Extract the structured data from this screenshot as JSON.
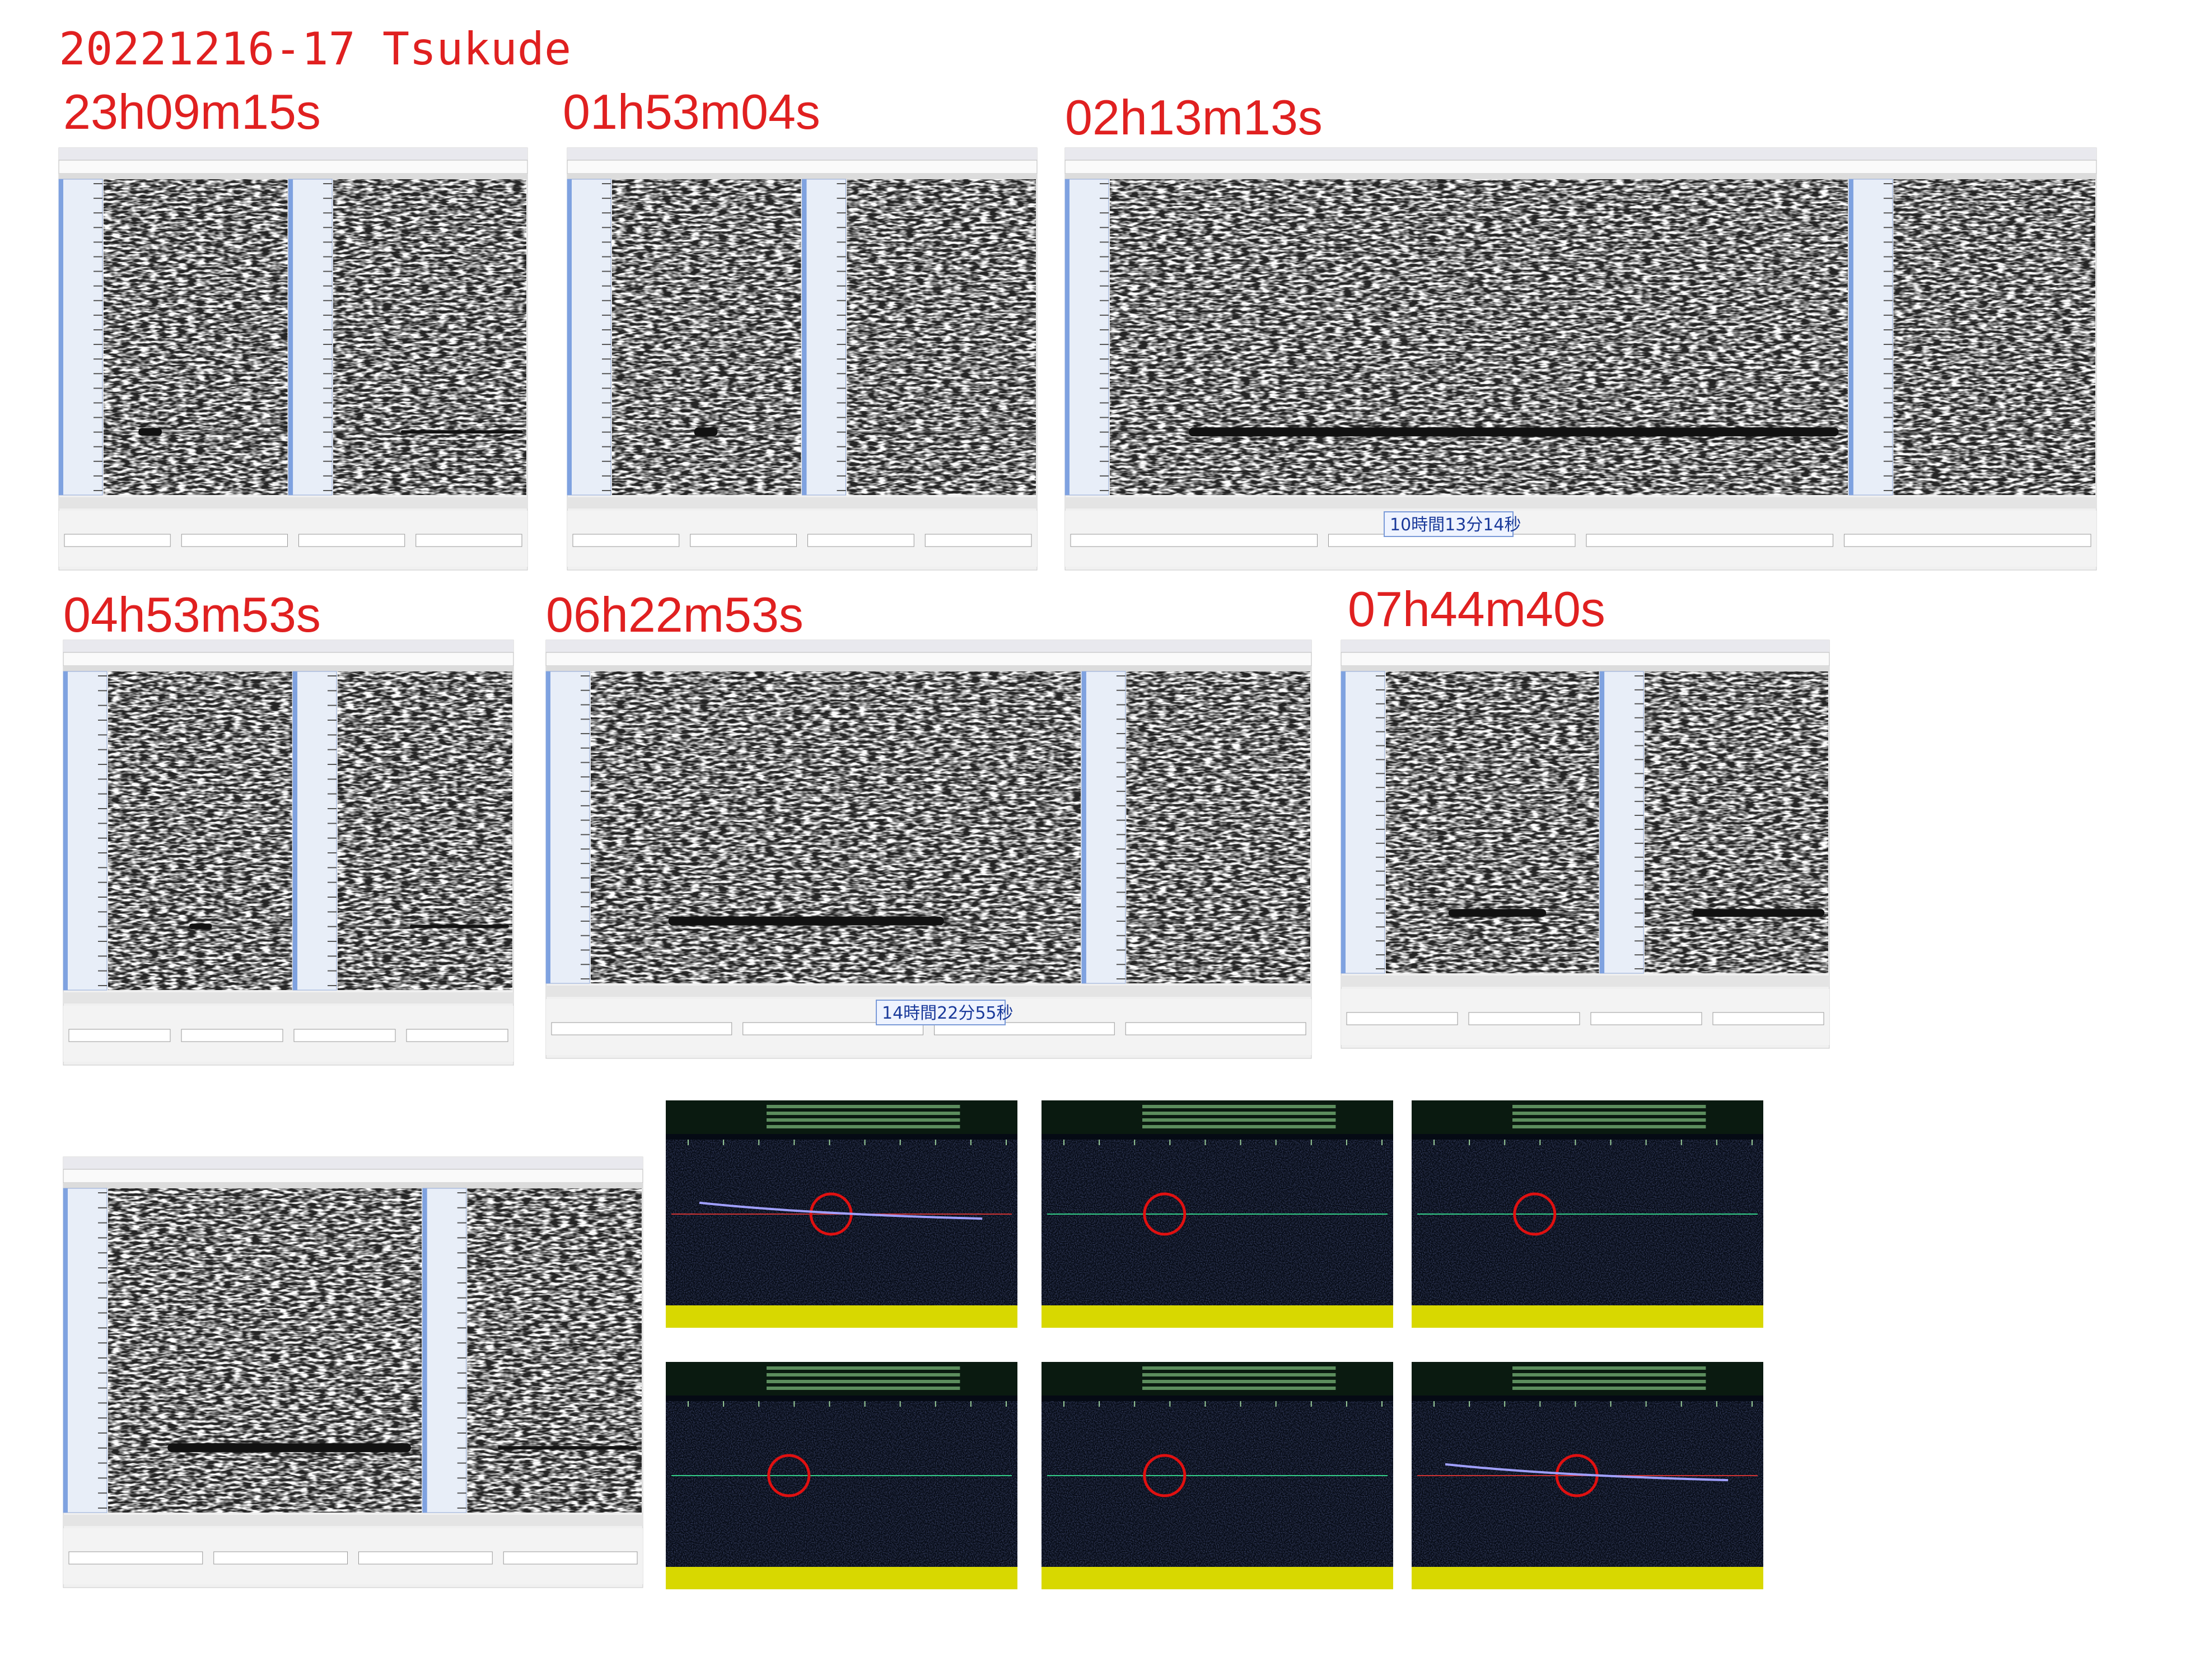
{
  "header": {
    "title": "20221216-17  Tsukude"
  },
  "captures": [
    {
      "label": "23h09m15s"
    },
    {
      "label": "01h53m04s"
    },
    {
      "label": "02h13m13s",
      "time_box": "10時間13分14秒"
    },
    {
      "label": "04h53m53s"
    },
    {
      "label": "06h22m53s",
      "time_box": "14時間22分55秒"
    },
    {
      "label": "07h44m40s"
    }
  ]
}
